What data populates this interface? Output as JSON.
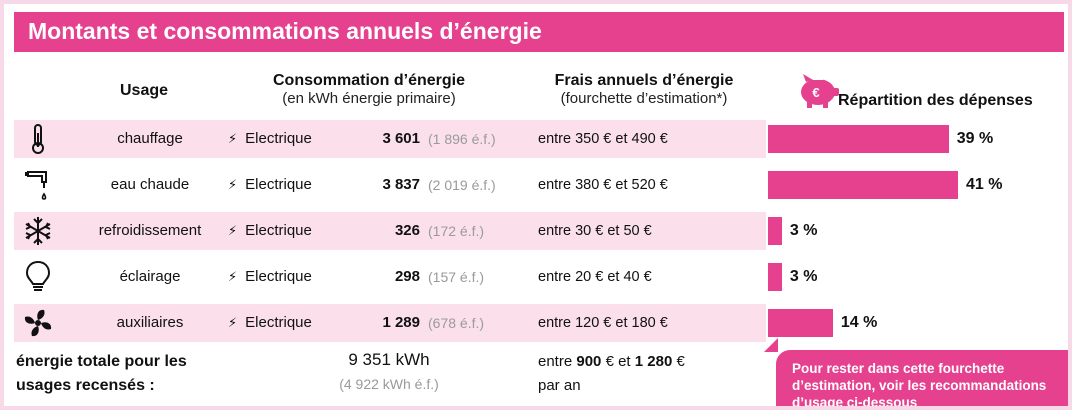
{
  "title": "Montants et consommations annuels d’énergie",
  "headers": {
    "usage": "Usage",
    "consommation_title": "Consommation d’énergie",
    "consommation_sub": "(en kWh énergie primaire)",
    "frais_title": "Frais annuels d’énergie",
    "frais_sub": "(fourchette d’estimation*)",
    "repartition_title": "Répartition des dépenses"
  },
  "colors": {
    "accent": "#e5418f",
    "row_pink": "#fbe0ec",
    "background": "#f7d9e8"
  },
  "rows": [
    {
      "icon": "thermometer-icon",
      "usage": "chauffage",
      "energy": "Electrique",
      "consumption": "3 601",
      "ef": "(1 896 é.f.)",
      "frais": "entre 350 € et 490 €",
      "percent": "39 %",
      "share": 39
    },
    {
      "icon": "faucet-icon",
      "usage": "eau chaude",
      "energy": "Electrique",
      "consumption": "3 837",
      "ef": "(2 019 é.f.)",
      "frais": "entre 380 € et 520 €",
      "percent": "41 %",
      "share": 41
    },
    {
      "icon": "snowflake-icon",
      "usage": "refroidissement",
      "energy": "Electrique",
      "consumption": "326",
      "ef": "(172 é.f.)",
      "frais": "entre 30 € et 50 €",
      "percent": "3 %",
      "share": 3
    },
    {
      "icon": "lightbulb-icon",
      "usage": "éclairage",
      "energy": "Electrique",
      "consumption": "298",
      "ef": "(157 é.f.)",
      "frais": "entre 20 € et 40 €",
      "percent": "3 %",
      "share": 3
    },
    {
      "icon": "fan-icon",
      "usage": "auxiliaires",
      "energy": "Electrique",
      "consumption": "1 289",
      "ef": "(678 é.f.)",
      "frais": "entre 120 € et 180 €",
      "percent": "14 %",
      "share": 14
    }
  ],
  "total": {
    "label_line1": "énergie totale pour les",
    "label_line2": "usages recensés :",
    "kwh": "9 351 kWh",
    "ef": "(4 922 kWh é.f.)",
    "frais_prefix": "entre",
    "frais_min": "900",
    "frais_mid": "€ et",
    "frais_max": "1 280",
    "frais_suffix": "€",
    "frais_line2": "par an"
  },
  "callout": {
    "line1": "Pour rester dans cette fourchette",
    "line2": "d’estimation, voir les recommandations",
    "line3": "d’usage ci-dessous"
  },
  "piggy_symbol": "€"
}
